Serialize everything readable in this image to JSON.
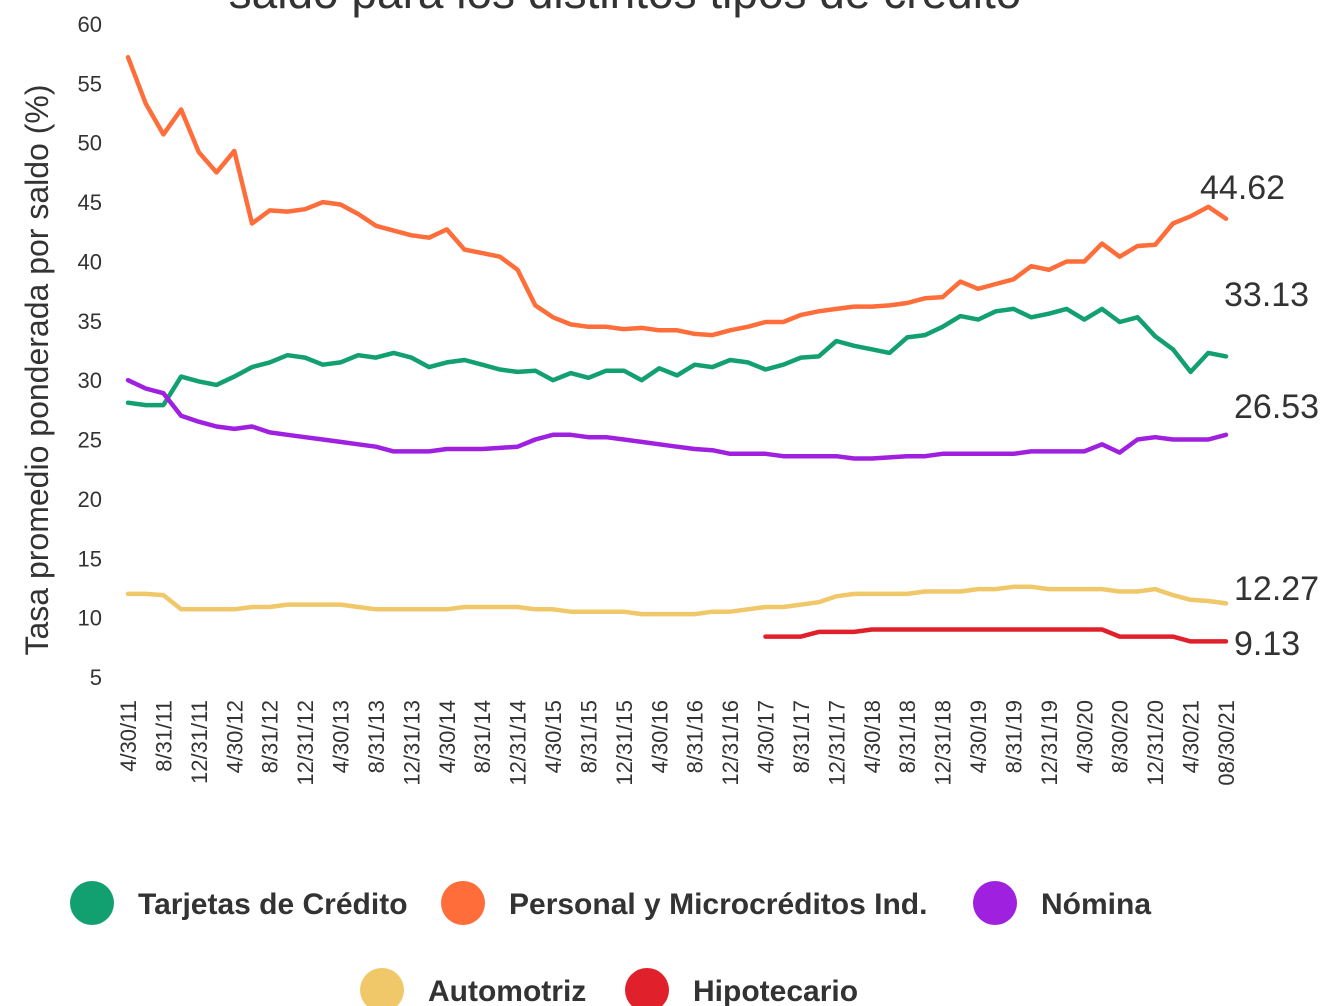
{
  "chart_data": {
    "type": "line",
    "title": "saldo para los distintos tipos de crédito",
    "y_label": "Tasa promedio ponderada por saldo (%)",
    "categories": [
      "4/30/11",
      null,
      "8/31/11",
      null,
      "12/31/11",
      null,
      "4/30/12",
      null,
      "8/31/12",
      null,
      "12/31/12",
      null,
      "4/30/13",
      null,
      "8/31/13",
      null,
      "12/31/13",
      null,
      "4/30/14",
      null,
      "8/31/14",
      null,
      "12/31/14",
      null,
      "4/30/15",
      null,
      "8/31/15",
      null,
      "12/31/15",
      null,
      "4/30/16",
      null,
      "8/31/16",
      null,
      "12/31/16",
      null,
      "4/30/17",
      null,
      "8/31/17",
      null,
      "12/31/17",
      null,
      "4/30/18",
      null,
      "8/31/18",
      null,
      "12/31/18",
      null,
      "4/30/19",
      null,
      "8/31/19",
      null,
      "12/31/19",
      null,
      "4/30/20",
      null,
      "8/30/20",
      null,
      "12/31/20",
      null,
      "4/30/21",
      null,
      "08/30/21"
    ],
    "series": [
      {
        "name": "Tarjetas de Crédito",
        "color": "#12a070",
        "values": [
          28.1,
          27.9,
          27.9,
          30.3,
          29.9,
          29.6,
          30.3,
          31.1,
          31.5,
          32.1,
          31.9,
          31.3,
          31.5,
          32.1,
          31.9,
          32.3,
          31.9,
          31.1,
          31.5,
          31.7,
          31.3,
          30.9,
          30.7,
          30.8,
          30,
          30.6,
          30.2,
          30.8,
          30.8,
          30,
          31,
          30.4,
          31.3,
          31.1,
          31.7,
          31.5,
          30.9,
          31.3,
          31.9,
          32,
          33.3,
          32.9,
          32.6,
          32.3,
          33.6,
          33.8,
          34.5,
          35.4,
          35.1,
          35.8,
          36,
          35.3,
          35.6,
          36,
          35.1,
          36,
          34.9,
          35.3,
          33.7,
          32.6,
          30.7,
          32.3,
          32
        ]
      },
      {
        "name": "Personal y Microcréditos Ind.",
        "color": "#ff6d3a",
        "values": [
          57.2,
          53.3,
          50.7,
          52.8,
          49.2,
          47.5,
          49.3,
          43.2,
          44.3,
          44.2,
          44.4,
          45,
          44.8,
          44,
          43,
          42.6,
          42.2,
          42,
          42.7,
          41,
          40.7,
          40.4,
          39.3,
          36.3,
          35.3,
          34.7,
          34.5,
          34.5,
          34.3,
          34.4,
          34.2,
          34.2,
          33.9,
          33.8,
          34.2,
          34.5,
          34.9,
          34.9,
          35.5,
          35.8,
          36,
          36.2,
          36.2,
          36.3,
          36.5,
          36.9,
          37,
          38.3,
          37.7,
          38.1,
          38.5,
          39.6,
          39.3,
          40,
          40,
          41.5,
          40.4,
          41.3,
          41.4,
          43.2,
          43.8,
          44.6,
          43.6
        ]
      },
      {
        "name": "Nómina",
        "color": "#a020e0",
        "values": [
          30,
          29.3,
          28.9,
          27,
          26.5,
          26.1,
          25.9,
          26.1,
          25.6,
          25.4,
          25.2,
          25,
          24.8,
          24.6,
          24.4,
          24,
          24,
          24,
          24.2,
          24.2,
          24.2,
          24.3,
          24.4,
          25,
          25.4,
          25.4,
          25.2,
          25.2,
          25,
          24.8,
          24.6,
          24.4,
          24.2,
          24.1,
          23.8,
          23.8,
          23.8,
          23.6,
          23.6,
          23.6,
          23.6,
          23.4,
          23.4,
          23.5,
          23.6,
          23.6,
          23.8,
          23.8,
          23.8,
          23.8,
          23.8,
          24,
          24,
          24,
          24,
          24.6,
          23.9,
          25,
          25.2,
          25,
          25,
          25,
          25.4
        ]
      },
      {
        "name": "Automotriz",
        "color": "#f0c86a",
        "values": [
          12,
          12,
          11.9,
          10.7,
          10.7,
          10.7,
          10.7,
          10.9,
          10.9,
          11.1,
          11.1,
          11.1,
          11.1,
          10.9,
          10.7,
          10.7,
          10.7,
          10.7,
          10.7,
          10.9,
          10.9,
          10.9,
          10.9,
          10.7,
          10.7,
          10.5,
          10.5,
          10.5,
          10.5,
          10.3,
          10.3,
          10.3,
          10.3,
          10.5,
          10.5,
          10.7,
          10.9,
          10.9,
          11.1,
          11.3,
          11.8,
          12,
          12,
          12,
          12,
          12.2,
          12.2,
          12.2,
          12.4,
          12.4,
          12.6,
          12.6,
          12.4,
          12.4,
          12.4,
          12.4,
          12.2,
          12.2,
          12.4,
          11.9,
          11.5,
          11.4,
          11.2
        ]
      },
      {
        "name": "Hipotecario",
        "color": "#e0202a",
        "values": [
          null,
          null,
          null,
          null,
          null,
          null,
          null,
          null,
          null,
          null,
          null,
          null,
          null,
          null,
          null,
          null,
          null,
          null,
          null,
          null,
          null,
          null,
          null,
          null,
          null,
          null,
          null,
          null,
          null,
          null,
          null,
          null,
          null,
          null,
          null,
          null,
          8.4,
          8.4,
          8.4,
          8.8,
          8.8,
          8.8,
          9,
          9,
          9,
          9,
          9,
          9,
          9,
          9,
          9,
          9,
          9,
          9,
          9,
          9,
          8.4,
          8.4,
          8.4,
          8.4,
          8,
          8,
          8
        ]
      }
    ],
    "annotations": [
      "44.62",
      "33.13",
      "26.53",
      "12.27",
      "9.13"
    ],
    "ylim": [
      5,
      60
    ],
    "yticks": [
      5,
      10,
      15,
      20,
      25,
      30,
      35,
      40,
      45,
      50,
      55,
      60
    ]
  }
}
